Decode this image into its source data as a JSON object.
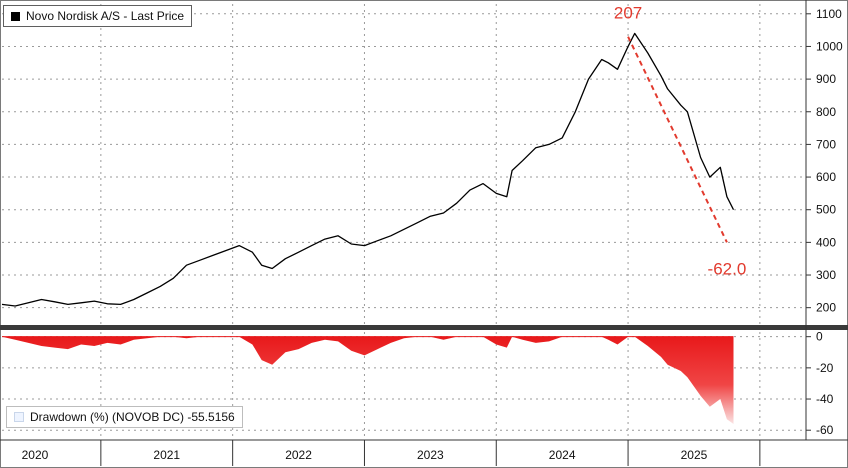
{
  "chart_data": [
    {
      "type": "line",
      "legend": "Novo Nordisk A/S - Last Price",
      "legend_position": "top-left",
      "x_unit": "year",
      "xlim": [
        2019.75,
        2025.85
      ],
      "ylim": [
        150,
        1130
      ],
      "y_ticks": [
        "200",
        "300",
        "400",
        "500",
        "600",
        "700",
        "800",
        "900",
        "1000",
        "1100"
      ],
      "grid": true,
      "color": "#000000",
      "series": [
        {
          "name": "Novo Nordisk A/S - Last Price",
          "x": [
            2019.75,
            2019.85,
            2019.95,
            2020.05,
            2020.15,
            2020.25,
            2020.35,
            2020.45,
            2020.55,
            2020.65,
            2020.75,
            2020.85,
            2020.95,
            2021.05,
            2021.15,
            2021.25,
            2021.35,
            2021.45,
            2021.55,
            2021.65,
            2021.72,
            2021.8,
            2021.9,
            2022.0,
            2022.1,
            2022.2,
            2022.3,
            2022.4,
            2022.5,
            2022.6,
            2022.7,
            2022.8,
            2022.9,
            2023.0,
            2023.1,
            2023.2,
            2023.3,
            2023.4,
            2023.5,
            2023.58,
            2023.62,
            2023.7,
            2023.8,
            2023.9,
            2024.0,
            2024.1,
            2024.2,
            2024.3,
            2024.35,
            2024.42,
            2024.5,
            2024.55,
            2024.65,
            2024.75,
            2024.8,
            2024.9,
            2024.95,
            2025.05,
            2025.12,
            2025.2,
            2025.25,
            2025.3
          ],
          "y": [
            210,
            205,
            215,
            225,
            218,
            210,
            215,
            220,
            212,
            210,
            225,
            245,
            265,
            290,
            330,
            345,
            360,
            375,
            390,
            370,
            330,
            320,
            350,
            370,
            390,
            410,
            420,
            395,
            390,
            405,
            420,
            440,
            460,
            480,
            490,
            520,
            560,
            580,
            550,
            540,
            620,
            650,
            690,
            700,
            720,
            800,
            900,
            960,
            950,
            930,
            1000,
            1040,
            980,
            910,
            870,
            820,
            800,
            660,
            600,
            630,
            540,
            500
          ]
        }
      ],
      "annotations": [
        {
          "text": "207",
          "x": 2024.5,
          "y": 1030,
          "color": "#e23a2e",
          "position": "above"
        },
        {
          "text": "-62.0",
          "x": 2025.25,
          "y": 400,
          "color": "#e23a2e",
          "position": "below"
        }
      ],
      "trend_line": {
        "style": "dashed",
        "color": "#e23a2e",
        "from": {
          "x": 2024.5,
          "y": 1030
        },
        "to": {
          "x": 2025.25,
          "y": 400
        }
      }
    },
    {
      "type": "area",
      "legend": "Drawdown (%) (NOVOB DC) -55.5156",
      "legend_position": "bottom-left",
      "x_unit": "year",
      "xlim": [
        2019.75,
        2025.85
      ],
      "ylim": [
        -65,
        3
      ],
      "y_ticks": [
        "0",
        "-20",
        "-40",
        "-60"
      ],
      "grid": true,
      "color": "#e8191b",
      "series": [
        {
          "name": "Drawdown (%) (NOVOB DC)",
          "x": [
            2019.75,
            2019.85,
            2019.95,
            2020.05,
            2020.15,
            2020.25,
            2020.35,
            2020.45,
            2020.55,
            2020.65,
            2020.75,
            2020.85,
            2020.95,
            2021.05,
            2021.15,
            2021.25,
            2021.35,
            2021.45,
            2021.55,
            2021.65,
            2021.72,
            2021.8,
            2021.9,
            2022.0,
            2022.1,
            2022.2,
            2022.3,
            2022.4,
            2022.5,
            2022.6,
            2022.7,
            2022.8,
            2022.9,
            2023.0,
            2023.1,
            2023.2,
            2023.3,
            2023.4,
            2023.5,
            2023.58,
            2023.62,
            2023.7,
            2023.8,
            2023.9,
            2024.0,
            2024.1,
            2024.2,
            2024.3,
            2024.35,
            2024.42,
            2024.5,
            2024.55,
            2024.65,
            2024.75,
            2024.8,
            2024.9,
            2024.95,
            2025.05,
            2025.12,
            2025.2,
            2025.25,
            2025.3
          ],
          "y": [
            0,
            -2,
            -4,
            -6,
            -7,
            -8,
            -5,
            -6,
            -4,
            -5,
            -2,
            -1,
            0,
            0,
            -1,
            0,
            0,
            0,
            0,
            -5,
            -15,
            -18,
            -10,
            -8,
            -4,
            -2,
            -3,
            -9,
            -12,
            -8,
            -4,
            -1,
            0,
            0,
            -2,
            0,
            0,
            0,
            -5,
            -7,
            0,
            -2,
            -4,
            -3,
            0,
            0,
            0,
            0,
            -2,
            -5,
            0,
            0,
            -6,
            -13,
            -18,
            -22,
            -26,
            -38,
            -45,
            -40,
            -53,
            -56
          ]
        }
      ]
    }
  ],
  "x_axis": {
    "labels": [
      "2020",
      "2021",
      "2022",
      "2023",
      "2024",
      "2025"
    ],
    "label_x": [
      2020.0,
      2021.0,
      2022.0,
      2023.0,
      2024.0,
      2025.0
    ],
    "dividers": [
      2020.5,
      2021.5,
      2022.5,
      2023.5,
      2024.5,
      2025.5
    ]
  }
}
